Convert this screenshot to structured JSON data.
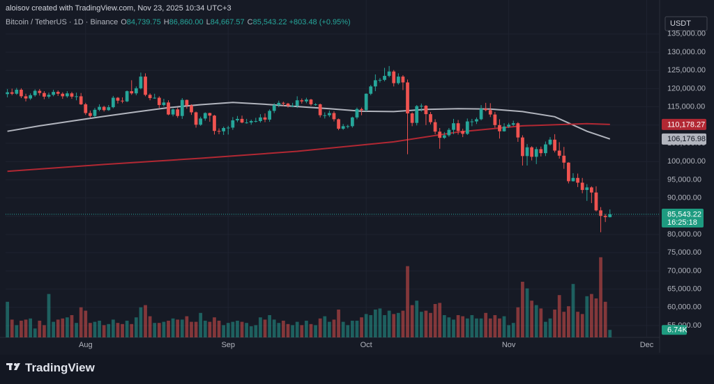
{
  "chart_data": {
    "type": "candlestick",
    "credit": "aloisov created with TradingView.com, Nov 23, 2025 10:34 UTC+3",
    "symbol": "Bitcoin / TetherUS · 1D · Binance",
    "ohlc_legend": [
      [
        "O",
        "84,739.75"
      ],
      [
        "H",
        "86,860.00"
      ],
      [
        "L",
        "84,667.57"
      ],
      [
        "C",
        "85,543.22"
      ]
    ],
    "change": "+803.48 (+0.95%)",
    "currency": "USDT",
    "brand": "TradingView",
    "up_color": "#26a69a",
    "down_color": "#ef5350",
    "last_price_label": "85,543.22",
    "countdown": "16:25:18",
    "grid": true,
    "xlim": [
      -0.4,
      141.8
    ],
    "xticks": [
      {
        "value": 17,
        "label": "Aug"
      },
      {
        "value": 48,
        "label": "Sep"
      },
      {
        "value": 78,
        "label": "Oct"
      },
      {
        "value": 109,
        "label": "Nov"
      },
      {
        "value": 139,
        "label": "Dec"
      }
    ],
    "ylim": [
      51750,
      140500
    ],
    "yticks": [
      {
        "value": 55000,
        "label": "55,000.00"
      },
      {
        "value": 60000,
        "label": "60,000.00"
      },
      {
        "value": 65000,
        "label": "65,000.00"
      },
      {
        "value": 70000,
        "label": "70,000.00"
      },
      {
        "value": 75000,
        "label": "75,000.00"
      },
      {
        "value": 80000,
        "label": "80,000.00"
      },
      {
        "value": 85000,
        "label": "85,000.00"
      },
      {
        "value": 90000,
        "label": "90,000.00"
      },
      {
        "value": 95000,
        "label": "95,000.00"
      },
      {
        "value": 100000,
        "label": "100,000.00"
      },
      {
        "value": 105000,
        "label": "105,000.00"
      },
      {
        "value": 110000,
        "label": "110,000.00"
      },
      {
        "value": 115000,
        "label": "115,000.00"
      },
      {
        "value": 120000,
        "label": "120,000.00"
      },
      {
        "value": 125000,
        "label": "125,000.00"
      },
      {
        "value": 130000,
        "label": "130,000.00"
      },
      {
        "value": 135000,
        "label": "135,000.00"
      }
    ],
    "candles": [
      [
        118500,
        119900,
        117600,
        119000
      ],
      [
        119000,
        120000,
        118200,
        118600
      ],
      [
        118600,
        120200,
        118300,
        119700
      ],
      [
        119700,
        120100,
        117400,
        117900
      ],
      [
        117900,
        118600,
        116500,
        117300
      ],
      [
        117300,
        118700,
        116900,
        118200
      ],
      [
        118200,
        119800,
        117800,
        119400
      ],
      [
        119400,
        119900,
        118100,
        118800
      ],
      [
        118800,
        119300,
        117100,
        117800
      ],
      [
        117800,
        118900,
        117300,
        118300
      ],
      [
        118300,
        119700,
        117900,
        119100
      ],
      [
        119100,
        119500,
        118000,
        118600
      ],
      [
        118600,
        119000,
        117200,
        117900
      ],
      [
        117900,
        119300,
        117500,
        118700
      ],
      [
        118700,
        119100,
        117200,
        117800
      ],
      [
        117800,
        118900,
        116800,
        117900
      ],
      [
        117900,
        118800,
        115500,
        115700
      ],
      [
        115700,
        116100,
        112800,
        113300
      ],
      [
        113300,
        114000,
        112000,
        112500
      ],
      [
        112500,
        114700,
        112100,
        114200
      ],
      [
        114200,
        115700,
        113800,
        115000
      ],
      [
        115000,
        115300,
        113700,
        114100
      ],
      [
        114100,
        115500,
        113900,
        114900
      ],
      [
        114900,
        118000,
        114600,
        117500
      ],
      [
        117500,
        117700,
        115900,
        116700
      ],
      [
        116700,
        117600,
        116000,
        116500
      ],
      [
        116500,
        119500,
        116300,
        119300
      ],
      [
        119300,
        122300,
        118300,
        118700
      ],
      [
        118700,
        120600,
        118200,
        120100
      ],
      [
        120100,
        124400,
        119800,
        123300
      ],
      [
        123300,
        124200,
        117900,
        118300
      ],
      [
        118300,
        118700,
        116800,
        117400
      ],
      [
        117400,
        118600,
        117200,
        117500
      ],
      [
        117500,
        117900,
        114700,
        115500
      ],
      [
        115500,
        117200,
        115100,
        116200
      ],
      [
        116200,
        116800,
        112700,
        112900
      ],
      [
        112900,
        114600,
        112400,
        114300
      ],
      [
        114300,
        114800,
        112000,
        112500
      ],
      [
        112500,
        117400,
        111700,
        116900
      ],
      [
        116900,
        117000,
        114500,
        115400
      ],
      [
        115400,
        115700,
        112800,
        113500
      ],
      [
        113500,
        113700,
        109300,
        110100
      ],
      [
        110100,
        112300,
        109800,
        111800
      ],
      [
        111800,
        113500,
        111200,
        113300
      ],
      [
        113300,
        113400,
        110900,
        112600
      ],
      [
        112600,
        112800,
        107400,
        108400
      ],
      [
        108400,
        109100,
        107500,
        108300
      ],
      [
        108300,
        109600,
        107300,
        109200
      ],
      [
        109200,
        109800,
        107400,
        109300
      ],
      [
        109300,
        112200,
        108700,
        111300
      ],
      [
        111300,
        112500,
        110800,
        111700
      ],
      [
        111700,
        112600,
        110500,
        110700
      ],
      [
        110700,
        111700,
        110400,
        110700
      ],
      [
        110700,
        111500,
        110100,
        111100
      ],
      [
        111100,
        112000,
        110700,
        111100
      ],
      [
        111100,
        113000,
        110700,
        112100
      ],
      [
        112100,
        113200,
        110800,
        111500
      ],
      [
        111500,
        114300,
        110900,
        113900
      ],
      [
        113900,
        116000,
        113300,
        115500
      ],
      [
        115500,
        116700,
        114900,
        116100
      ],
      [
        116100,
        116400,
        115200,
        115900
      ],
      [
        115900,
        116100,
        114800,
        115300
      ],
      [
        115300,
        116100,
        114900,
        115300
      ],
      [
        115300,
        117900,
        114700,
        116800
      ],
      [
        116800,
        117300,
        115900,
        116500
      ],
      [
        116500,
        117500,
        116000,
        117000
      ],
      [
        117000,
        117200,
        115300,
        115700
      ],
      [
        115700,
        116000,
        115300,
        115700
      ],
      [
        115700,
        115900,
        112100,
        112700
      ],
      [
        112700,
        113500,
        111800,
        112700
      ],
      [
        112700,
        114000,
        112200,
        113300
      ],
      [
        113300,
        113800,
        111000,
        111600
      ],
      [
        111600,
        111800,
        108600,
        109000
      ],
      [
        109000,
        110300,
        108700,
        109700
      ],
      [
        109700,
        110100,
        109100,
        109700
      ],
      [
        109700,
        112300,
        109300,
        112100
      ],
      [
        112100,
        114800,
        111600,
        114400
      ],
      [
        114400,
        114800,
        112700,
        114100
      ],
      [
        114100,
        118700,
        113800,
        118600
      ],
      [
        118600,
        121000,
        118200,
        120600
      ],
      [
        120600,
        123900,
        119300,
        122300
      ],
      [
        122300,
        122900,
        121700,
        122400
      ],
      [
        122400,
        125700,
        122000,
        123500
      ],
      [
        123500,
        126200,
        123100,
        124700
      ],
      [
        124700,
        125100,
        120600,
        121500
      ],
      [
        121500,
        124200,
        121100,
        123300
      ],
      [
        123300,
        123700,
        119600,
        121700
      ],
      [
        121700,
        122500,
        102000,
        113200
      ],
      [
        113200,
        113500,
        109700,
        110600
      ],
      [
        110600,
        115500,
        109900,
        115200
      ],
      [
        115200,
        115900,
        113700,
        115300
      ],
      [
        115300,
        115500,
        110000,
        113000
      ],
      [
        113000,
        113600,
        110200,
        110800
      ],
      [
        110800,
        111600,
        107500,
        108200
      ],
      [
        108200,
        109200,
        103500,
        106500
      ],
      [
        106500,
        108100,
        106200,
        107200
      ],
      [
        107200,
        109200,
        106800,
        108700
      ],
      [
        108700,
        111700,
        107500,
        110500
      ],
      [
        110500,
        111400,
        107400,
        108400
      ],
      [
        108400,
        109000,
        106700,
        107600
      ],
      [
        107600,
        111800,
        107300,
        111000
      ],
      [
        111000,
        111700,
        109700,
        111000
      ],
      [
        111000,
        112100,
        110300,
        111600
      ],
      [
        111600,
        115500,
        111300,
        114500
      ],
      [
        114500,
        116100,
        113800,
        114100
      ],
      [
        114100,
        116000,
        112200,
        112900
      ],
      [
        112900,
        113600,
        109300,
        110000
      ],
      [
        110000,
        111600,
        106300,
        108300
      ],
      [
        108300,
        110500,
        108200,
        109600
      ],
      [
        109600,
        110600,
        109200,
        110100
      ],
      [
        110100,
        111200,
        109700,
        110500
      ],
      [
        110500,
        110800,
        105400,
        106600
      ],
      [
        106600,
        107200,
        98900,
        101500
      ],
      [
        101500,
        104800,
        98900,
        103900
      ],
      [
        103900,
        104200,
        100300,
        101300
      ],
      [
        101300,
        104000,
        99300,
        103400
      ],
      [
        103400,
        104100,
        101400,
        102300
      ],
      [
        102300,
        105500,
        101500,
        104700
      ],
      [
        104700,
        106700,
        104400,
        106000
      ],
      [
        106000,
        107500,
        102500,
        103000
      ],
      [
        103000,
        105300,
        100800,
        101600
      ],
      [
        101600,
        104000,
        98000,
        99700
      ],
      [
        99700,
        99800,
        94000,
        94600
      ],
      [
        94600,
        96800,
        94500,
        95500
      ],
      [
        95500,
        96700,
        93000,
        94200
      ],
      [
        94200,
        95500,
        91300,
        92200
      ],
      [
        92200,
        93800,
        89200,
        92900
      ],
      [
        92900,
        93200,
        88600,
        91500
      ],
      [
        91500,
        93200,
        86300,
        86600
      ],
      [
        86600,
        87500,
        80600,
        85100
      ],
      [
        85100,
        85600,
        83400,
        84739.75
      ],
      [
        84739.75,
        86860,
        84667.57,
        85543.22
      ]
    ],
    "volume": {
      "ylim": [
        0,
        80
      ],
      "last_label": "6.74K",
      "values": [
        32,
        16,
        11,
        15,
        16,
        17,
        8,
        15,
        11,
        39,
        14,
        16,
        17,
        18,
        20,
        13,
        27,
        24,
        13,
        14,
        15,
        11,
        12,
        16,
        13,
        12,
        15,
        12,
        18,
        27,
        29,
        19,
        13,
        13,
        14,
        15,
        17,
        16,
        16,
        19,
        14,
        14,
        22,
        15,
        14,
        18,
        15,
        11,
        13,
        14,
        15,
        14,
        13,
        10,
        11,
        18,
        16,
        20,
        16,
        13,
        15,
        12,
        11,
        14,
        11,
        15,
        12,
        11,
        17,
        19,
        14,
        16,
        25,
        14,
        11,
        15,
        15,
        18,
        21,
        20,
        25,
        26,
        20,
        24,
        21,
        22,
        24,
        64,
        29,
        33,
        23,
        24,
        22,
        30,
        31,
        20,
        18,
        16,
        20,
        19,
        17,
        20,
        17,
        17,
        22,
        17,
        20,
        17,
        19,
        11,
        13,
        27,
        50,
        44,
        33,
        29,
        26,
        14,
        17,
        25,
        38,
        23,
        28,
        48,
        23,
        21,
        37,
        39,
        35,
        72,
        32,
        6.74
      ]
    },
    "moving_averages": [
      {
        "color": "#b2b5be",
        "tag_text": "#131722",
        "last_label": "106,176.98",
        "x": [
          0,
          7,
          14,
          21,
          28,
          35,
          42,
          49,
          56,
          63,
          70,
          77,
          84,
          91,
          98,
          105,
          112,
          119,
          126,
          131
        ],
        "values": [
          108300,
          109800,
          111100,
          112400,
          113600,
          114800,
          115600,
          116200,
          115700,
          115100,
          114500,
          113800,
          113700,
          114300,
          114500,
          114400,
          113700,
          112300,
          108300,
          106176.98
        ]
      },
      {
        "color": "#b22833",
        "tag_text": "#ffffff",
        "last_label": "110,178.27",
        "x": [
          0,
          21,
          42,
          63,
          84,
          98,
          112,
          126,
          131
        ],
        "values": [
          97300,
          99200,
          100900,
          102800,
          105400,
          108100,
          109800,
          110400,
          110178.27
        ]
      }
    ]
  }
}
